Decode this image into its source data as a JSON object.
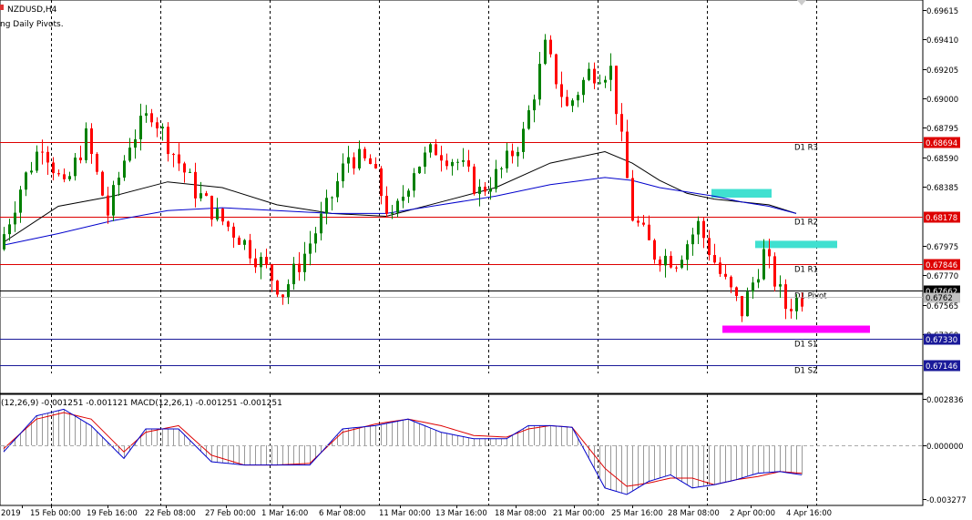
{
  "header": {
    "symbol_label": "NZDUSD,H4",
    "indicator_label": "ng Daily Pivots."
  },
  "macd_header": "(12,26,9) -0.001251 -0.001121 MACD(12,26,1) -0.001251 -0.001251",
  "colors": {
    "bull": "#008000",
    "bear": "#ff0000",
    "ma_fast": "#000000",
    "ma_slow": "#0000cc",
    "resistance_line": "#dd0000",
    "support_line": "#1a1a99",
    "pivot_line": "#000000",
    "resistance_zone": "#40e0d0",
    "support_zone": "#ff00ff",
    "macd_line": "#0000cc",
    "signal_line": "#dd0000",
    "histogram": "#999999"
  },
  "chart_data": [
    {
      "type": "candlestick",
      "title": "NZDUSD,H4",
      "y_ticks": [
        "0.69615",
        "0.69410",
        "0.69205",
        "0.69000",
        "0.68795",
        "0.68590",
        "0.68385",
        "0.67975",
        "0.67770",
        "0.67565",
        "0.67360"
      ],
      "x_ticks": [
        "2019",
        "15 Feb 00:00",
        "19 Feb 16:00",
        "22 Feb 08:00",
        "27 Feb 00:00",
        "1 Mar 16:00",
        "6 Mar 08:00",
        "11 Mar 00:00",
        "13 Mar 16:00",
        "18 Mar 08:00",
        "21 Mar 00:00",
        "25 Mar 16:00",
        "28 Mar 08:00",
        "2 Apr 00:00",
        "4 Apr 16:00"
      ],
      "ylim": [
        0.671,
        0.6972
      ],
      "grid": "vertical dashed",
      "pivot_levels": [
        {
          "name": "D1 R3",
          "value": 0.68694,
          "tag": "0.68694"
        },
        {
          "name": "D1 R2",
          "value": 0.68178,
          "tag": "0.68178"
        },
        {
          "name": "D1 R1",
          "value": 0.67846,
          "tag": "0.67846"
        },
        {
          "name": "D1 Pivot",
          "value": 0.67662,
          "tag": "0.67662"
        },
        {
          "name": "D1 S1",
          "value": 0.6733,
          "tag": "0.67330"
        },
        {
          "name": "D1 S2",
          "value": 0.67146,
          "tag": "0.67146"
        }
      ],
      "current_price_tag": "0.6762",
      "zones": [
        {
          "kind": "resistance",
          "x_from": 129.5,
          "x_to": 140.5,
          "y_from": 0.6831,
          "y_to": 0.6837
        },
        {
          "kind": "resistance",
          "x_from": 137.5,
          "x_to": 152.5,
          "y_from": 0.6796,
          "y_to": 0.6801
        },
        {
          "kind": "support",
          "x_from": 131.5,
          "x_to": 158.5,
          "y_from": 0.6737,
          "y_to": 0.6742
        }
      ],
      "series": [
        {
          "kind": "close",
          "x": [
            0,
            4,
            8,
            12,
            16,
            20,
            24,
            28,
            32,
            36,
            40,
            44,
            48,
            52,
            56,
            60,
            64,
            68,
            72,
            76,
            80,
            84,
            88,
            92,
            96,
            100,
            104,
            108,
            112,
            116,
            120,
            124,
            128,
            132,
            136,
            140,
            144,
            148
          ],
          "values": [
            0.6795,
            0.6838,
            0.687,
            0.6836,
            0.6873,
            0.682,
            0.687,
            0.6891,
            0.6862,
            0.6836,
            0.6818,
            0.6804,
            0.6786,
            0.6765,
            0.6792,
            0.6823,
            0.686,
            0.6854,
            0.6814,
            0.6852,
            0.6865,
            0.6856,
            0.6835,
            0.685,
            0.6875,
            0.6935,
            0.6893,
            0.6918,
            0.692,
            0.6818,
            0.6792,
            0.6788,
            0.6812,
            0.6778,
            0.6752,
            0.6792,
            0.6755,
            0.6764
          ]
        },
        {
          "kind": "moving_average_fast",
          "x": [
            0,
            10,
            20,
            30,
            40,
            50,
            60,
            70,
            80,
            90,
            100,
            110,
            115,
            120,
            125,
            130,
            135,
            140,
            145
          ],
          "values": [
            0.68,
            0.6825,
            0.6832,
            0.6842,
            0.6838,
            0.6826,
            0.682,
            0.6818,
            0.6828,
            0.6838,
            0.6855,
            0.6863,
            0.6855,
            0.6843,
            0.6834,
            0.683,
            0.6828,
            0.6826,
            0.682
          ]
        },
        {
          "kind": "moving_average_slow",
          "x": [
            0,
            10,
            20,
            30,
            40,
            50,
            60,
            70,
            80,
            90,
            100,
            110,
            115,
            120,
            125,
            130,
            135,
            140,
            145
          ],
          "values": [
            0.6798,
            0.6806,
            0.6815,
            0.6822,
            0.6824,
            0.6822,
            0.682,
            0.682,
            0.6826,
            0.6832,
            0.684,
            0.6845,
            0.6843,
            0.6838,
            0.6835,
            0.6832,
            0.6828,
            0.6825,
            0.682
          ]
        }
      ]
    },
    {
      "type": "line",
      "title": "MACD(12,26,9)",
      "y_ticks": [
        "0.002836",
        "0.000000",
        "-0.003277"
      ],
      "ylim": [
        -0.003277,
        0.002836
      ],
      "series": [
        {
          "name": "MACD",
          "x": [
            0,
            6,
            11,
            16,
            22,
            26,
            32,
            38,
            44,
            50,
            56,
            62,
            68,
            74,
            80,
            86,
            92,
            96,
            100,
            104,
            110,
            114,
            118,
            122,
            126,
            130,
            134,
            138,
            142,
            146
          ],
          "values": [
            -0.0004,
            0.0018,
            0.0022,
            0.0012,
            -0.0008,
            0.001,
            0.001,
            -0.001,
            -0.0012,
            -0.0012,
            -0.0012,
            0.001,
            0.0012,
            0.0016,
            0.0008,
            0.0004,
            0.0004,
            0.0012,
            0.0012,
            0.0011,
            -0.0026,
            -0.003,
            -0.0022,
            -0.0018,
            -0.0026,
            -0.0024,
            -0.0021,
            -0.0017,
            -0.0016,
            -0.0018
          ]
        },
        {
          "name": "Signal",
          "x": [
            0,
            6,
            11,
            16,
            22,
            26,
            32,
            38,
            44,
            50,
            56,
            62,
            68,
            74,
            80,
            86,
            92,
            96,
            100,
            104,
            110,
            114,
            118,
            122,
            126,
            130,
            134,
            138,
            142,
            146
          ],
          "values": [
            -0.0002,
            0.0016,
            0.002,
            0.0016,
            -0.0004,
            0.0008,
            0.0012,
            -0.0006,
            -0.0012,
            -0.0012,
            -0.0011,
            0.0008,
            0.0013,
            0.0016,
            0.0012,
            0.0006,
            0.0005,
            0.001,
            0.0012,
            0.0011,
            -0.0014,
            -0.0025,
            -0.0023,
            -0.002,
            -0.002,
            -0.0024,
            -0.0021,
            -0.0019,
            -0.0016,
            -0.0017
          ]
        }
      ]
    }
  ]
}
